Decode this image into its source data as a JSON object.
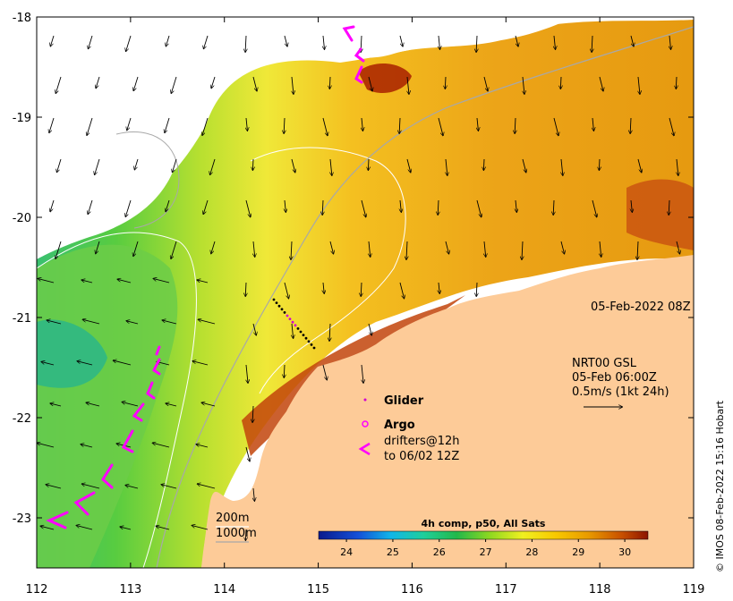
{
  "map": {
    "timestamp": "05-Feb-2022 08Z",
    "vector_legend": {
      "line1": "NRT00 GSL",
      "line2": "05-Feb 06:00Z",
      "line3": "0.5m/s (1kt 24h)"
    },
    "platform_legend": {
      "glider": "Glider",
      "argo": "Argo",
      "drifters_line1": "drifters@12h",
      "drifters_line2": "to 06/02 12Z"
    },
    "contour_legend": {
      "isobath_200": "200m",
      "isobath_1000": "1000m"
    },
    "colorbar": {
      "title": "4h comp, p50, All Sats",
      "ticks": [
        "24",
        "25",
        "26",
        "27",
        "28",
        "29",
        "30"
      ],
      "vmin": 23.4,
      "vmax": 30.5
    },
    "x_ticks": [
      "112",
      "113",
      "114",
      "115",
      "116",
      "117",
      "118",
      "119"
    ],
    "y_ticks": [
      "-18",
      "-19",
      "-20",
      "-21",
      "-22",
      "-23"
    ],
    "lon_range": [
      112,
      119
    ],
    "lat_range": [
      -23.5,
      -18
    ],
    "credit": "© IMOS 08-Feb-2022 15:16 Hobart",
    "colors": {
      "land": "#fdcb98",
      "warm": "#e8a000",
      "cool": "#2db85a",
      "drifter": "#ff00ff",
      "glider": "#d000d0"
    }
  }
}
